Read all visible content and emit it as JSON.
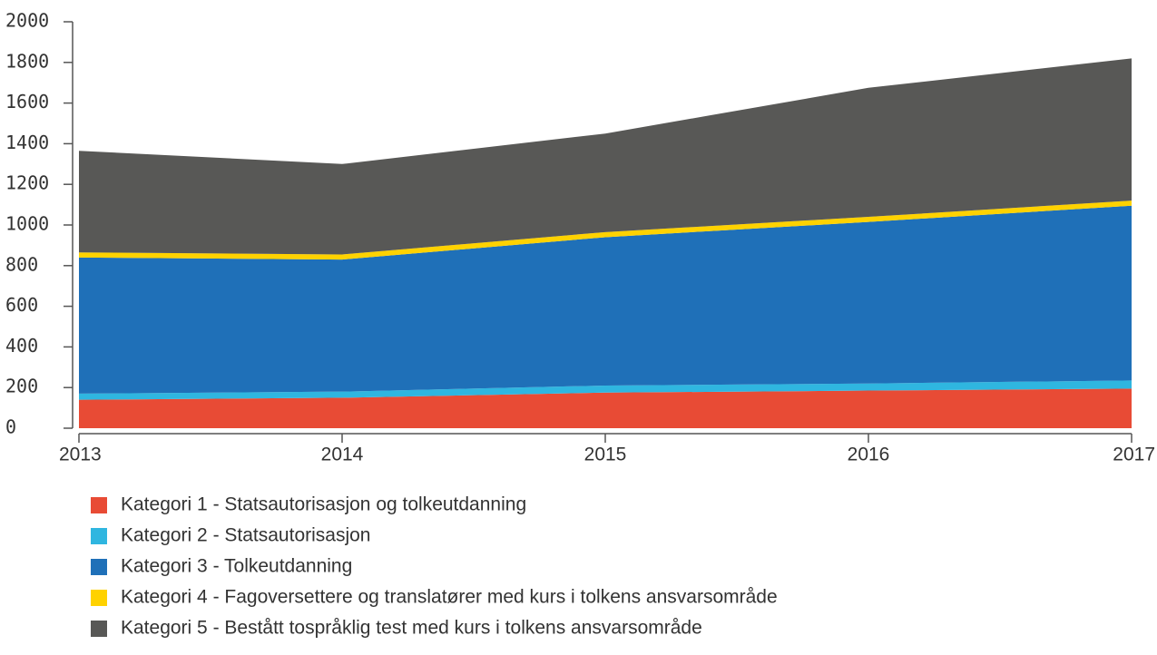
{
  "chart_data": {
    "type": "stacked_area",
    "x": [
      2013,
      2014,
      2015,
      2016,
      2017
    ],
    "series": [
      {
        "name": "Kategori 1 - Statsautorisasjon og tolkeutdanning",
        "color": "#e84b35",
        "values": [
          140,
          150,
          175,
          185,
          195
        ]
      },
      {
        "name": "Kategori 2 - Statsautorisasjon",
        "color": "#2fb6e0",
        "values": [
          30,
          30,
          35,
          35,
          40
        ]
      },
      {
        "name": "Kategori 3 - Tolkeutdanning",
        "color": "#1f70b8",
        "values": [
          670,
          650,
          730,
          795,
          860
        ]
      },
      {
        "name": "Kategori 4 - Fagoversettere og translatører med kurs i tolkens ansvarsområde",
        "color": "#ffd200",
        "values": [
          25,
          25,
          25,
          25,
          25
        ]
      },
      {
        "name": "Kategori 5 - Bestått tospråklig test med kurs i tolkens ansvarsområde",
        "color": "#585856",
        "values": [
          500,
          445,
          485,
          635,
          700
        ]
      }
    ],
    "xlim": [
      2013,
      2017
    ],
    "ylim": [
      0,
      2000
    ],
    "yticks": [
      0,
      200,
      400,
      600,
      800,
      1000,
      1200,
      1400,
      1600,
      1800,
      2000
    ]
  }
}
